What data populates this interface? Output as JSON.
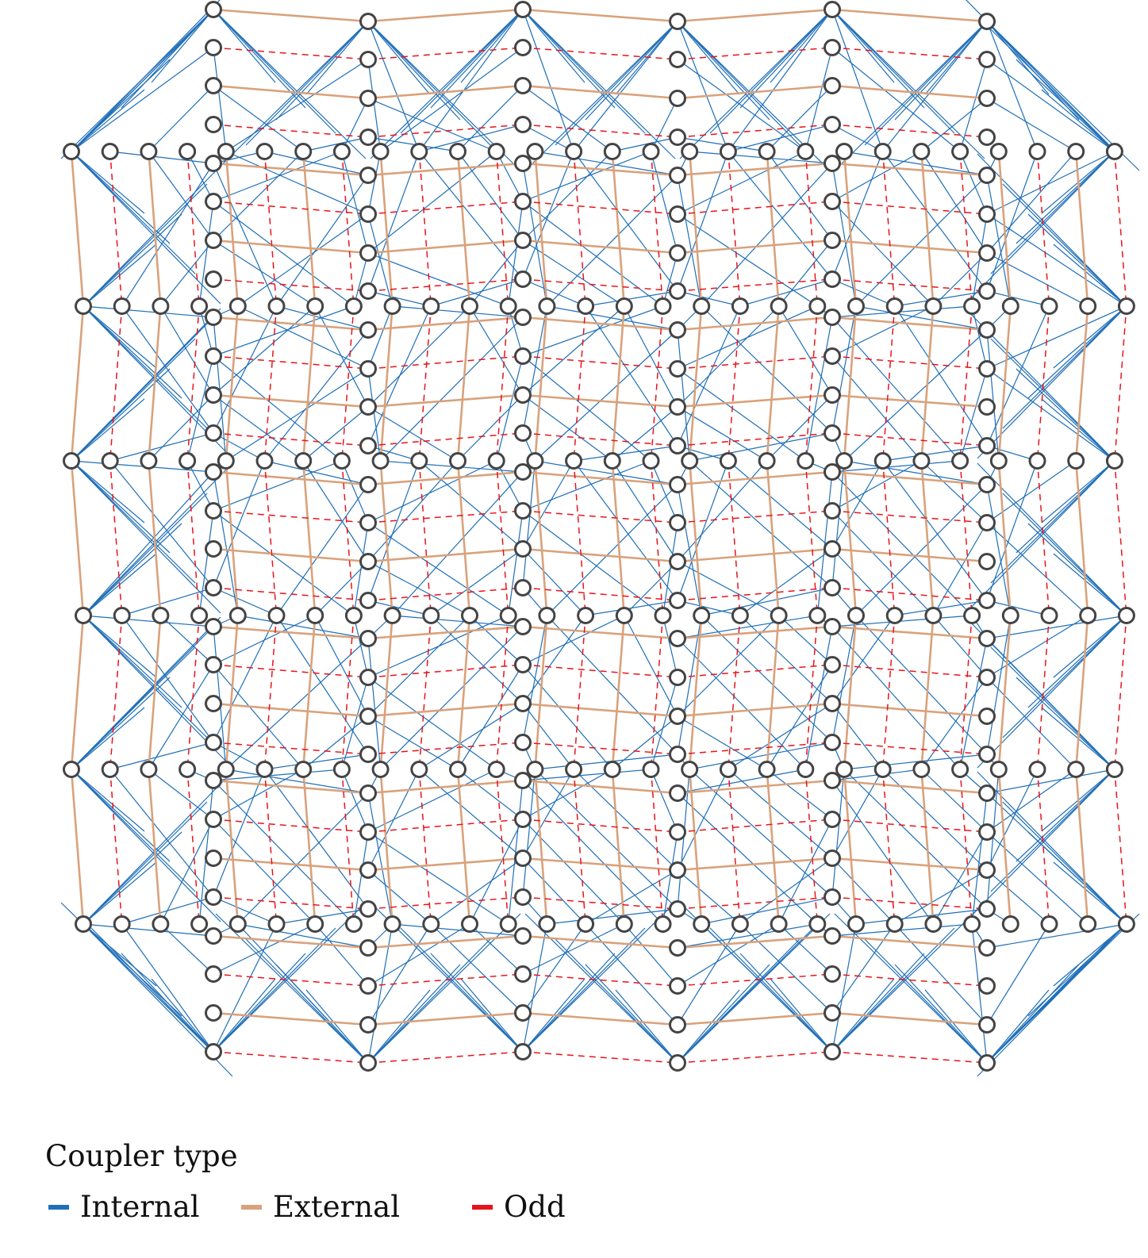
{
  "legend": {
    "title": "Coupler type",
    "items": [
      {
        "label": "Internal",
        "color": "#1f6fb8"
      },
      {
        "label": "External",
        "color": "#d9a27c"
      },
      {
        "label": "Odd",
        "color": "#e8141b"
      }
    ]
  },
  "graph": {
    "vertical_columns": 6,
    "horizontal_rows": 6,
    "qubits_per_line": 24,
    "node_fill": "#ffffff",
    "node_stroke": "#444444"
  }
}
